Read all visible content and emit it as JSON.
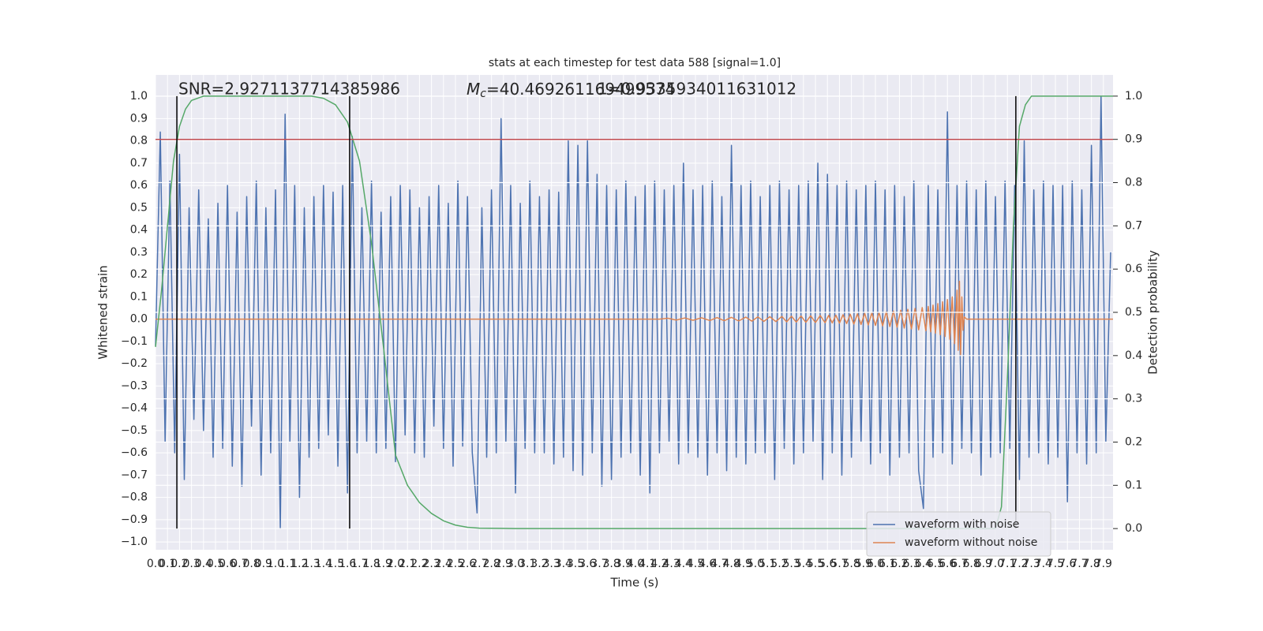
{
  "chart_data": {
    "type": "line",
    "title": "stats at each timestep for test data 588 [signal=1.0]",
    "x_label": "Time (s)",
    "y_label": "Whitened strain",
    "y2_label": "Detection probability",
    "grid": true,
    "legend": "lower right",
    "annotations": {
      "snr": "SNR=2.9271137714385986",
      "mc_symbol": "M",
      "mc_subscript": "c",
      "mc_value": "=40.469261169499574",
      "overlap": "1=0.9335934011631012"
    },
    "xlim": [
      0,
      7.98
    ],
    "ylim": [
      -1.035,
      1.096
    ],
    "y2lim": [
      -0.049,
      1.049
    ],
    "xticks": [
      {
        "value": 0,
        "label": "0.0"
      },
      {
        "value": 0.1,
        "label": "0.1"
      },
      {
        "value": 0.2,
        "label": "0.2"
      },
      {
        "value": 0.3,
        "label": "0.3"
      },
      {
        "value": 0.4,
        "label": "0.4"
      },
      {
        "value": 0.5,
        "label": "0.5"
      },
      {
        "value": 0.6,
        "label": "0.6"
      },
      {
        "value": 0.7,
        "label": "0.7"
      },
      {
        "value": 0.8,
        "label": "0.8"
      },
      {
        "value": 0.9,
        "label": "0.9"
      },
      {
        "value": 1,
        "label": "1.0"
      },
      {
        "value": 1.1,
        "label": "1.1"
      },
      {
        "value": 1.2,
        "label": "1.2"
      },
      {
        "value": 1.3,
        "label": "1.3"
      },
      {
        "value": 1.4,
        "label": "1.4"
      },
      {
        "value": 1.5,
        "label": "1.5"
      },
      {
        "value": 1.6,
        "label": "1.6"
      },
      {
        "value": 1.7,
        "label": "1.7"
      },
      {
        "value": 1.8,
        "label": "1.8"
      },
      {
        "value": 1.9,
        "label": "1.9"
      },
      {
        "value": 2,
        "label": "2.0"
      },
      {
        "value": 2.1,
        "label": "2.1"
      },
      {
        "value": 2.2,
        "label": "2.2"
      },
      {
        "value": 2.3,
        "label": "2.3"
      },
      {
        "value": 2.4,
        "label": "2.4"
      },
      {
        "value": 2.5,
        "label": "2.5"
      },
      {
        "value": 2.6,
        "label": "2.6"
      },
      {
        "value": 2.7,
        "label": "2.7"
      },
      {
        "value": 2.8,
        "label": "2.8"
      },
      {
        "value": 2.9,
        "label": "2.9"
      },
      {
        "value": 3,
        "label": "3.0"
      },
      {
        "value": 3.1,
        "label": "3.1"
      },
      {
        "value": 3.2,
        "label": "3.2"
      },
      {
        "value": 3.3,
        "label": "3.3"
      },
      {
        "value": 3.4,
        "label": "3.4"
      },
      {
        "value": 3.5,
        "label": "3.5"
      },
      {
        "value": 3.6,
        "label": "3.6"
      },
      {
        "value": 3.7,
        "label": "3.7"
      },
      {
        "value": 3.8,
        "label": "3.8"
      },
      {
        "value": 3.9,
        "label": "3.9"
      },
      {
        "value": 4,
        "label": "4.0"
      },
      {
        "value": 4.1,
        "label": "4.1"
      },
      {
        "value": 4.2,
        "label": "4.2"
      },
      {
        "value": 4.3,
        "label": "4.3"
      },
      {
        "value": 4.4,
        "label": "4.4"
      },
      {
        "value": 4.5,
        "label": "4.5"
      },
      {
        "value": 4.6,
        "label": "4.6"
      },
      {
        "value": 4.7,
        "label": "4.7"
      },
      {
        "value": 4.8,
        "label": "4.8"
      },
      {
        "value": 4.9,
        "label": "4.9"
      },
      {
        "value": 5,
        "label": "5.0"
      },
      {
        "value": 5.1,
        "label": "5.1"
      },
      {
        "value": 5.2,
        "label": "5.2"
      },
      {
        "value": 5.3,
        "label": "5.3"
      },
      {
        "value": 5.4,
        "label": "5.4"
      },
      {
        "value": 5.5,
        "label": "5.5"
      },
      {
        "value": 5.6,
        "label": "5.6"
      },
      {
        "value": 5.7,
        "label": "5.7"
      },
      {
        "value": 5.8,
        "label": "5.8"
      },
      {
        "value": 5.9,
        "label": "5.9"
      },
      {
        "value": 6,
        "label": "6.0"
      },
      {
        "value": 6.1,
        "label": "6.1"
      },
      {
        "value": 6.2,
        "label": "6.2"
      },
      {
        "value": 6.3,
        "label": "6.3"
      },
      {
        "value": 6.4,
        "label": "6.4"
      },
      {
        "value": 6.5,
        "label": "6.5"
      },
      {
        "value": 6.6,
        "label": "6.6"
      },
      {
        "value": 6.7,
        "label": "6.7"
      },
      {
        "value": 6.8,
        "label": "6.8"
      },
      {
        "value": 6.9,
        "label": "6.9"
      },
      {
        "value": 7,
        "label": "7.0"
      },
      {
        "value": 7.1,
        "label": "7.1"
      },
      {
        "value": 7.2,
        "label": "7.2"
      },
      {
        "value": 7.3,
        "label": "7.3"
      },
      {
        "value": 7.4,
        "label": "7.4"
      },
      {
        "value": 7.5,
        "label": "7.5"
      },
      {
        "value": 7.6,
        "label": "7.6"
      },
      {
        "value": 7.7,
        "label": "7.7"
      },
      {
        "value": 7.8,
        "label": "7.8"
      },
      {
        "value": 7.9,
        "label": "7.9"
      }
    ],
    "yticks": [
      {
        "value": -1,
        "label": "−1.0"
      },
      {
        "value": -0.9,
        "label": "−0.9"
      },
      {
        "value": -0.8,
        "label": "−0.8"
      },
      {
        "value": -0.7,
        "label": "−0.7"
      },
      {
        "value": -0.6,
        "label": "−0.6"
      },
      {
        "value": -0.5,
        "label": "−0.5"
      },
      {
        "value": -0.4,
        "label": "−0.4"
      },
      {
        "value": -0.3,
        "label": "−0.3"
      },
      {
        "value": -0.2,
        "label": "−0.2"
      },
      {
        "value": -0.1,
        "label": "−0.1"
      },
      {
        "value": 0,
        "label": "0.0"
      },
      {
        "value": 0.1,
        "label": "0.1"
      },
      {
        "value": 0.2,
        "label": "0.2"
      },
      {
        "value": 0.3,
        "label": "0.3"
      },
      {
        "value": 0.4,
        "label": "0.4"
      },
      {
        "value": 0.5,
        "label": "0.5"
      },
      {
        "value": 0.6,
        "label": "0.6"
      },
      {
        "value": 0.7,
        "label": "0.7"
      },
      {
        "value": 0.8,
        "label": "0.8"
      },
      {
        "value": 0.9,
        "label": "0.9"
      },
      {
        "value": 1,
        "label": "1.0"
      }
    ],
    "y2ticks": [
      {
        "value": 0,
        "label": "0.0"
      },
      {
        "value": 0.1,
        "label": "0.1"
      },
      {
        "value": 0.2,
        "label": "0.2"
      },
      {
        "value": 0.3,
        "label": "0.3"
      },
      {
        "value": 0.4,
        "label": "0.4"
      },
      {
        "value": 0.5,
        "label": "0.5"
      },
      {
        "value": 0.6,
        "label": "0.6"
      },
      {
        "value": 0.7,
        "label": "0.7"
      },
      {
        "value": 0.8,
        "label": "0.8"
      },
      {
        "value": 0.9,
        "label": "0.9"
      },
      {
        "value": 1,
        "label": "1.0"
      }
    ],
    "series": [
      {
        "name": "waveform with noise",
        "color": "#4c72b0",
        "x": [
          0,
          0.04,
          0.08,
          0.12,
          0.16,
          0.2,
          0.24,
          0.28,
          0.32,
          0.36,
          0.4,
          0.44,
          0.48,
          0.52,
          0.56,
          0.6,
          0.64,
          0.68,
          0.72,
          0.76,
          0.8,
          0.84,
          0.88,
          0.92,
          0.96,
          1,
          1.04,
          1.08,
          1.12,
          1.16,
          1.2,
          1.24,
          1.28,
          1.32,
          1.36,
          1.4,
          1.44,
          1.48,
          1.52,
          1.56,
          1.6,
          1.64,
          1.68,
          1.72,
          1.76,
          1.8,
          1.84,
          1.88,
          1.92,
          1.96,
          2,
          2.04,
          2.08,
          2.12,
          2.16,
          2.2,
          2.24,
          2.28,
          2.32,
          2.36,
          2.4,
          2.44,
          2.48,
          2.52,
          2.56,
          2.6,
          2.64,
          2.68,
          2.72,
          2.76,
          2.8,
          2.84,
          2.88,
          2.92,
          2.96,
          3,
          3.04,
          3.08,
          3.12,
          3.16,
          3.2,
          3.24,
          3.28,
          3.32,
          3.36,
          3.4,
          3.44,
          3.48,
          3.52,
          3.56,
          3.6,
          3.64,
          3.68,
          3.72,
          3.76,
          3.8,
          3.84,
          3.88,
          3.92,
          3.96,
          4,
          4.04,
          4.08,
          4.12,
          4.16,
          4.2,
          4.24,
          4.28,
          4.32,
          4.36,
          4.4,
          4.44,
          4.48,
          4.52,
          4.56,
          4.6,
          4.64,
          4.68,
          4.72,
          4.76,
          4.8,
          4.84,
          4.88,
          4.92,
          4.96,
          5,
          5.04,
          5.08,
          5.12,
          5.16,
          5.2,
          5.24,
          5.28,
          5.32,
          5.36,
          5.4,
          5.44,
          5.48,
          5.52,
          5.56,
          5.6,
          5.64,
          5.68,
          5.72,
          5.76,
          5.8,
          5.84,
          5.88,
          5.92,
          5.96,
          6,
          6.04,
          6.08,
          6.12,
          6.16,
          6.2,
          6.24,
          6.28,
          6.32,
          6.36,
          6.4,
          6.44,
          6.48,
          6.52,
          6.56,
          6.6,
          6.64,
          6.68,
          6.72,
          6.76,
          6.8,
          6.84,
          6.88,
          6.92,
          6.96,
          7,
          7.04,
          7.08,
          7.12,
          7.16,
          7.2,
          7.24,
          7.28,
          7.32,
          7.36,
          7.4,
          7.44,
          7.48,
          7.52,
          7.56,
          7.6,
          7.64,
          7.68,
          7.72,
          7.76,
          7.8,
          7.84,
          7.88,
          7.92,
          7.96
        ],
        "values": [
          -0.12,
          0.84,
          -0.55,
          0.62,
          -0.6,
          0.74,
          -0.72,
          0.5,
          -0.45,
          0.58,
          -0.5,
          0.45,
          -0.62,
          0.52,
          -0.58,
          0.6,
          -0.66,
          0.48,
          -0.75,
          0.55,
          -0.48,
          0.62,
          -0.7,
          0.5,
          -0.6,
          0.58,
          -0.94,
          0.92,
          -0.55,
          0.6,
          -0.8,
          0.5,
          -0.62,
          0.55,
          -0.58,
          0.6,
          -0.52,
          0.57,
          -0.66,
          0.6,
          -0.78,
          0.82,
          -0.6,
          0.5,
          -0.55,
          0.62,
          -0.6,
          0.48,
          -0.58,
          0.55,
          -0.64,
          0.6,
          -0.52,
          0.58,
          -0.6,
          0.5,
          -0.62,
          0.55,
          -0.48,
          0.6,
          -0.58,
          0.52,
          -0.66,
          0.62,
          -0.57,
          0.55,
          -0.6,
          -0.87,
          0.5,
          -0.62,
          0.58,
          -0.6,
          0.9,
          -0.55,
          0.6,
          -0.78,
          0.52,
          -0.58,
          0.62,
          -0.6,
          0.55,
          -0.6,
          0.58,
          -0.65,
          0.57,
          -0.62,
          0.8,
          -0.68,
          0.78,
          -0.7,
          0.8,
          -0.6,
          0.65,
          -0.75,
          0.6,
          -0.72,
          0.58,
          -0.62,
          0.62,
          -0.6,
          0.55,
          -0.7,
          0.6,
          -0.78,
          0.62,
          -0.6,
          0.58,
          -0.55,
          0.6,
          -0.65,
          0.7,
          -0.6,
          0.58,
          -0.62,
          0.6,
          -0.7,
          0.62,
          -0.6,
          0.55,
          -0.68,
          0.78,
          -0.62,
          0.6,
          -0.65,
          0.62,
          -0.6,
          0.55,
          -0.6,
          0.6,
          -0.72,
          0.62,
          -0.58,
          0.58,
          -0.65,
          0.6,
          -0.6,
          0.62,
          -0.55,
          0.7,
          -0.72,
          0.65,
          -0.6,
          0.6,
          -0.7,
          0.62,
          -0.62,
          0.58,
          -0.55,
          0.6,
          -0.65,
          0.62,
          -0.6,
          0.58,
          -0.7,
          0.6,
          -0.62,
          0.55,
          -0.6,
          0.62,
          -0.68,
          -0.85,
          0.6,
          -0.62,
          0.58,
          -0.6,
          0.93,
          -0.65,
          0.6,
          -0.58,
          0.62,
          -0.6,
          0.58,
          -0.7,
          0.62,
          -0.62,
          0.55,
          -0.6,
          0.62,
          -0.58,
          0.6,
          -0.72,
          0.8,
          -0.62,
          0.58,
          -0.6,
          0.62,
          -0.65,
          0.6,
          -0.62,
          0.6,
          -0.82,
          0.62,
          -0.6,
          0.58,
          -0.65,
          0.78,
          -0.6,
          1.0,
          -0.55,
          0.3
        ]
      },
      {
        "name": "waveform without noise",
        "color": "#dd8452",
        "x": [
          0,
          4.2,
          4.27,
          4.34,
          4.41,
          4.48,
          4.55,
          4.62,
          4.68,
          4.74,
          4.8,
          4.86,
          4.92,
          4.97,
          5.02,
          5.07,
          5.12,
          5.17,
          5.22,
          5.26,
          5.3,
          5.34,
          5.38,
          5.42,
          5.46,
          5.5,
          5.54,
          5.58,
          5.61,
          5.64,
          5.67,
          5.7,
          5.73,
          5.76,
          5.79,
          5.82,
          5.85,
          5.88,
          5.91,
          5.94,
          5.97,
          6,
          6.03,
          6.06,
          6.09,
          6.12,
          6.15,
          6.18,
          6.21,
          6.24,
          6.27,
          6.3,
          6.33,
          6.36,
          6.39,
          6.42,
          6.44,
          6.46,
          6.48,
          6.5,
          6.52,
          6.54,
          6.56,
          6.58,
          6.6,
          6.62,
          6.64,
          6.66,
          6.68,
          6.69,
          6.7,
          6.71,
          6.72,
          6.73,
          6.74,
          6.76,
          7.98
        ],
        "values": [
          0,
          0,
          0.004,
          -0.004,
          0.005,
          -0.005,
          0.006,
          -0.006,
          0.007,
          -0.007,
          0.008,
          -0.008,
          0.009,
          -0.009,
          0.01,
          -0.01,
          0.011,
          -0.011,
          0.012,
          -0.012,
          0.013,
          -0.013,
          0.014,
          -0.014,
          0.015,
          -0.015,
          0.016,
          -0.016,
          0.017,
          -0.017,
          0.018,
          -0.018,
          0.02,
          -0.02,
          0.022,
          -0.022,
          0.024,
          -0.024,
          0.026,
          -0.026,
          0.028,
          -0.028,
          0.03,
          -0.03,
          0.033,
          -0.033,
          0.036,
          -0.036,
          0.04,
          -0.04,
          0.044,
          -0.044,
          0.048,
          -0.048,
          0.052,
          -0.052,
          0.057,
          -0.057,
          0.063,
          -0.063,
          0.07,
          -0.07,
          0.078,
          -0.078,
          0.088,
          -0.09,
          0.1,
          -0.11,
          0.13,
          -0.14,
          0.17,
          -0.16,
          0.1,
          -0.05,
          0.01,
          0,
          0
        ]
      },
      {
        "color": "#55a868",
        "axis": "y2",
        "x": [
          0,
          0.05,
          0.1,
          0.15,
          0.2,
          0.25,
          0.3,
          0.4,
          1.3,
          1.4,
          1.5,
          1.6,
          1.7,
          1.8,
          1.9,
          2,
          2.1,
          2.2,
          2.3,
          2.4,
          2.5,
          2.6,
          2.7,
          3,
          7,
          7.05,
          7.1,
          7.15,
          7.2,
          7.25,
          7.3,
          7.98
        ],
        "values": [
          0.42,
          0.55,
          0.7,
          0.85,
          0.93,
          0.97,
          0.99,
          1.0,
          1.0,
          0.995,
          0.98,
          0.94,
          0.85,
          0.66,
          0.42,
          0.17,
          0.1,
          0.06,
          0.035,
          0.018,
          0.008,
          0.003,
          0.001,
          0,
          0,
          0.05,
          0.35,
          0.7,
          0.93,
          0.98,
          1.0,
          1.0
        ]
      }
    ],
    "hline": {
      "value": 0.9,
      "axis": "y2",
      "color": "#c44e52"
    },
    "vlines": {
      "x": [
        0.178,
        1.618,
        7.17
      ],
      "color": "#000000"
    }
  }
}
